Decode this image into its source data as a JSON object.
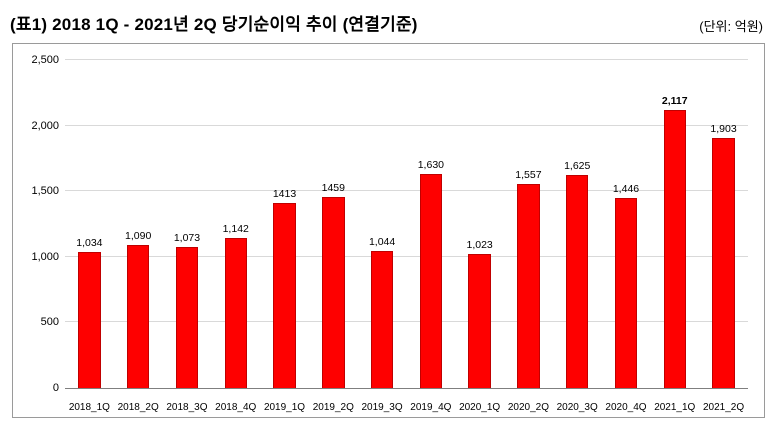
{
  "header": {
    "title": "(표1) 2018 1Q - 2021년 2Q 당기순이익 추이 (연결기준)",
    "unit": "(단위: 억원)"
  },
  "chart_data": {
    "type": "bar",
    "title": "2018 1Q - 2021년 2Q 당기순이익 추이 (연결기준)",
    "xlabel": "",
    "ylabel": "억원",
    "categories": [
      "2018_1Q",
      "2018_2Q",
      "2018_3Q",
      "2018_4Q",
      "2019_1Q",
      "2019_2Q",
      "2019_3Q",
      "2019_4Q",
      "2020_1Q",
      "2020_2Q",
      "2020_3Q",
      "2020_4Q",
      "2021_1Q",
      "2021_2Q"
    ],
    "values": [
      1034,
      1090,
      1073,
      1142,
      1413,
      1459,
      1044,
      1630,
      1023,
      1557,
      1625,
      1446,
      2117,
      1903
    ],
    "value_labels": [
      "1,034",
      "1,090",
      "1,073",
      "1,142",
      "1413",
      "1459",
      "1,044",
      "1,630",
      "1,023",
      "1,557",
      "1,625",
      "1,446",
      "2,117",
      "1,903"
    ],
    "bold_indices": [
      12
    ],
    "ylim": [
      0,
      2500
    ],
    "yticks": [
      0,
      500,
      1000,
      1500,
      2000,
      2500
    ],
    "ytick_labels": [
      "0",
      "500",
      "1,000",
      "1,500",
      "2,000",
      "2,500"
    ],
    "bar_color": "#fe0000",
    "grid": true,
    "legend_position": "none"
  }
}
